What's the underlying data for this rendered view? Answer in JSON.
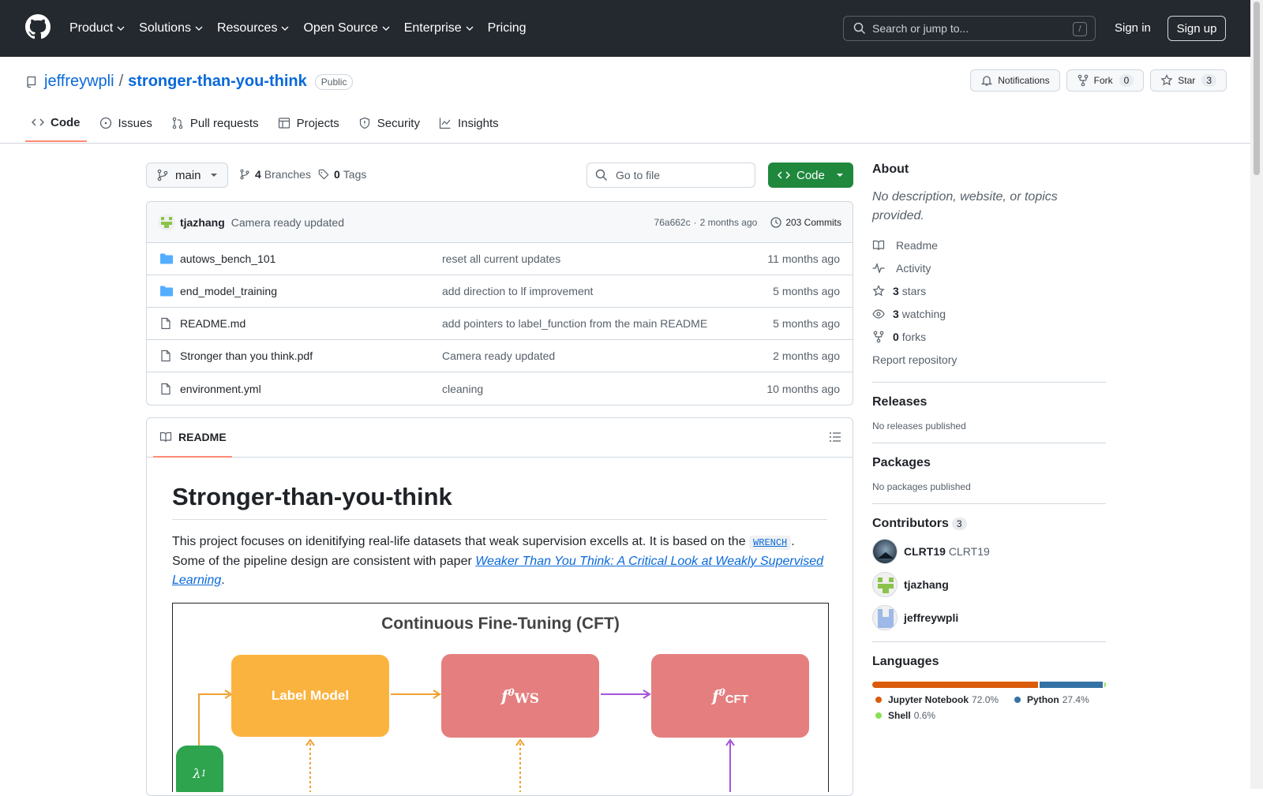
{
  "topnav": {
    "items": [
      {
        "label": "Product",
        "dropdown": true
      },
      {
        "label": "Solutions",
        "dropdown": true
      },
      {
        "label": "Resources",
        "dropdown": true
      },
      {
        "label": "Open Source",
        "dropdown": true
      },
      {
        "label": "Enterprise",
        "dropdown": true
      },
      {
        "label": "Pricing",
        "dropdown": false
      }
    ],
    "search_placeholder": "Search or jump to...",
    "search_shortcut": "/",
    "signin": "Sign in",
    "signup": "Sign up"
  },
  "repo": {
    "owner": "jeffreywpli",
    "separator": "/",
    "name": "stronger-than-you-think",
    "visibility": "Public",
    "actions": {
      "notifications": "Notifications",
      "fork": "Fork",
      "fork_count": "0",
      "star": "Star",
      "star_count": "3"
    },
    "tabs": [
      "Code",
      "Issues",
      "Pull requests",
      "Projects",
      "Security",
      "Insights"
    ]
  },
  "branchbar": {
    "branch": "main",
    "branches_count": "4",
    "branches_label": "Branches",
    "tags_count": "0",
    "tags_label": "Tags",
    "goto_placeholder": "Go to file",
    "code_button": "Code"
  },
  "latest_commit": {
    "author": "tjazhang",
    "message": "Camera ready updated",
    "hash": "76a662c",
    "sep": "·",
    "time": "2 months ago",
    "commits": "203 Commits"
  },
  "files": [
    {
      "type": "folder",
      "name": "autows_bench_101",
      "message": "reset all current updates",
      "time": "11 months ago"
    },
    {
      "type": "folder",
      "name": "end_model_training",
      "message": "add direction to lf improvement",
      "time": "5 months ago"
    },
    {
      "type": "file",
      "name": "README.md",
      "message": "add pointers to label_function from the main README",
      "time": "5 months ago"
    },
    {
      "type": "file",
      "name": "Stronger than you think.pdf",
      "message": "Camera ready updated",
      "time": "2 months ago"
    },
    {
      "type": "file",
      "name": "environment.yml",
      "message": "cleaning",
      "time": "10 months ago"
    }
  ],
  "readme": {
    "tab": "README",
    "title": "Stronger-than-you-think",
    "p1_before": "This project focuses on idenitifying real-life datasets that weak supervision excells at. It is based on the ",
    "p1_code": "WRENCH",
    "p1_mid": ". Some of the pipeline design are consistent with paper ",
    "p1_link": "Weaker Than You Think: A Critical Look at Weakly Supervised Learning",
    "p1_end": ".",
    "diagram": {
      "title": "Continuous  Fine-Tuning (CFT)",
      "label_model": "Label Model",
      "f_ws": "f",
      "f_ws_sub1": "θ",
      "f_ws_sub2": "WS",
      "f_cft": "f",
      "f_cft_sub1": "θ",
      "f_cft_sub2": "CFT",
      "lambda": "λ",
      "lambda_sub": "1",
      "colors": {
        "label_model": "#fbb33f",
        "f_box": "#e57f7f",
        "lambda": "#2ea44f",
        "arrow_orange": "#f0a030",
        "arrow_purple": "#a855d7"
      }
    }
  },
  "about": {
    "heading": "About",
    "description": "No description, website, or topics provided.",
    "items": [
      {
        "icon": "book-icon",
        "count": "",
        "label": "Readme"
      },
      {
        "icon": "pulse-icon",
        "count": "",
        "label": "Activity"
      },
      {
        "icon": "star-icon",
        "count": "3",
        "label": "stars"
      },
      {
        "icon": "eye-icon",
        "count": "3",
        "label": "watching"
      },
      {
        "icon": "fork-icon",
        "count": "0",
        "label": "forks"
      }
    ],
    "report": "Report repository"
  },
  "releases": {
    "heading": "Releases",
    "text": "No releases published"
  },
  "packages": {
    "heading": "Packages",
    "text": "No packages published"
  },
  "contributors": {
    "heading": "Contributors",
    "count": "3",
    "list": [
      {
        "login": "CLRT19",
        "name": "CLRT19"
      },
      {
        "login": "tjazhang",
        "name": ""
      },
      {
        "login": "jeffreywpli",
        "name": ""
      }
    ]
  },
  "languages": {
    "heading": "Languages",
    "list": [
      {
        "name": "Jupyter Notebook",
        "percent": "72.0%",
        "value": 72.0,
        "color": "#DA5B0B"
      },
      {
        "name": "Python",
        "percent": "27.4%",
        "value": 27.4,
        "color": "#3572A5"
      },
      {
        "name": "Shell",
        "percent": "0.6%",
        "value": 0.6,
        "color": "#89e051"
      }
    ]
  }
}
